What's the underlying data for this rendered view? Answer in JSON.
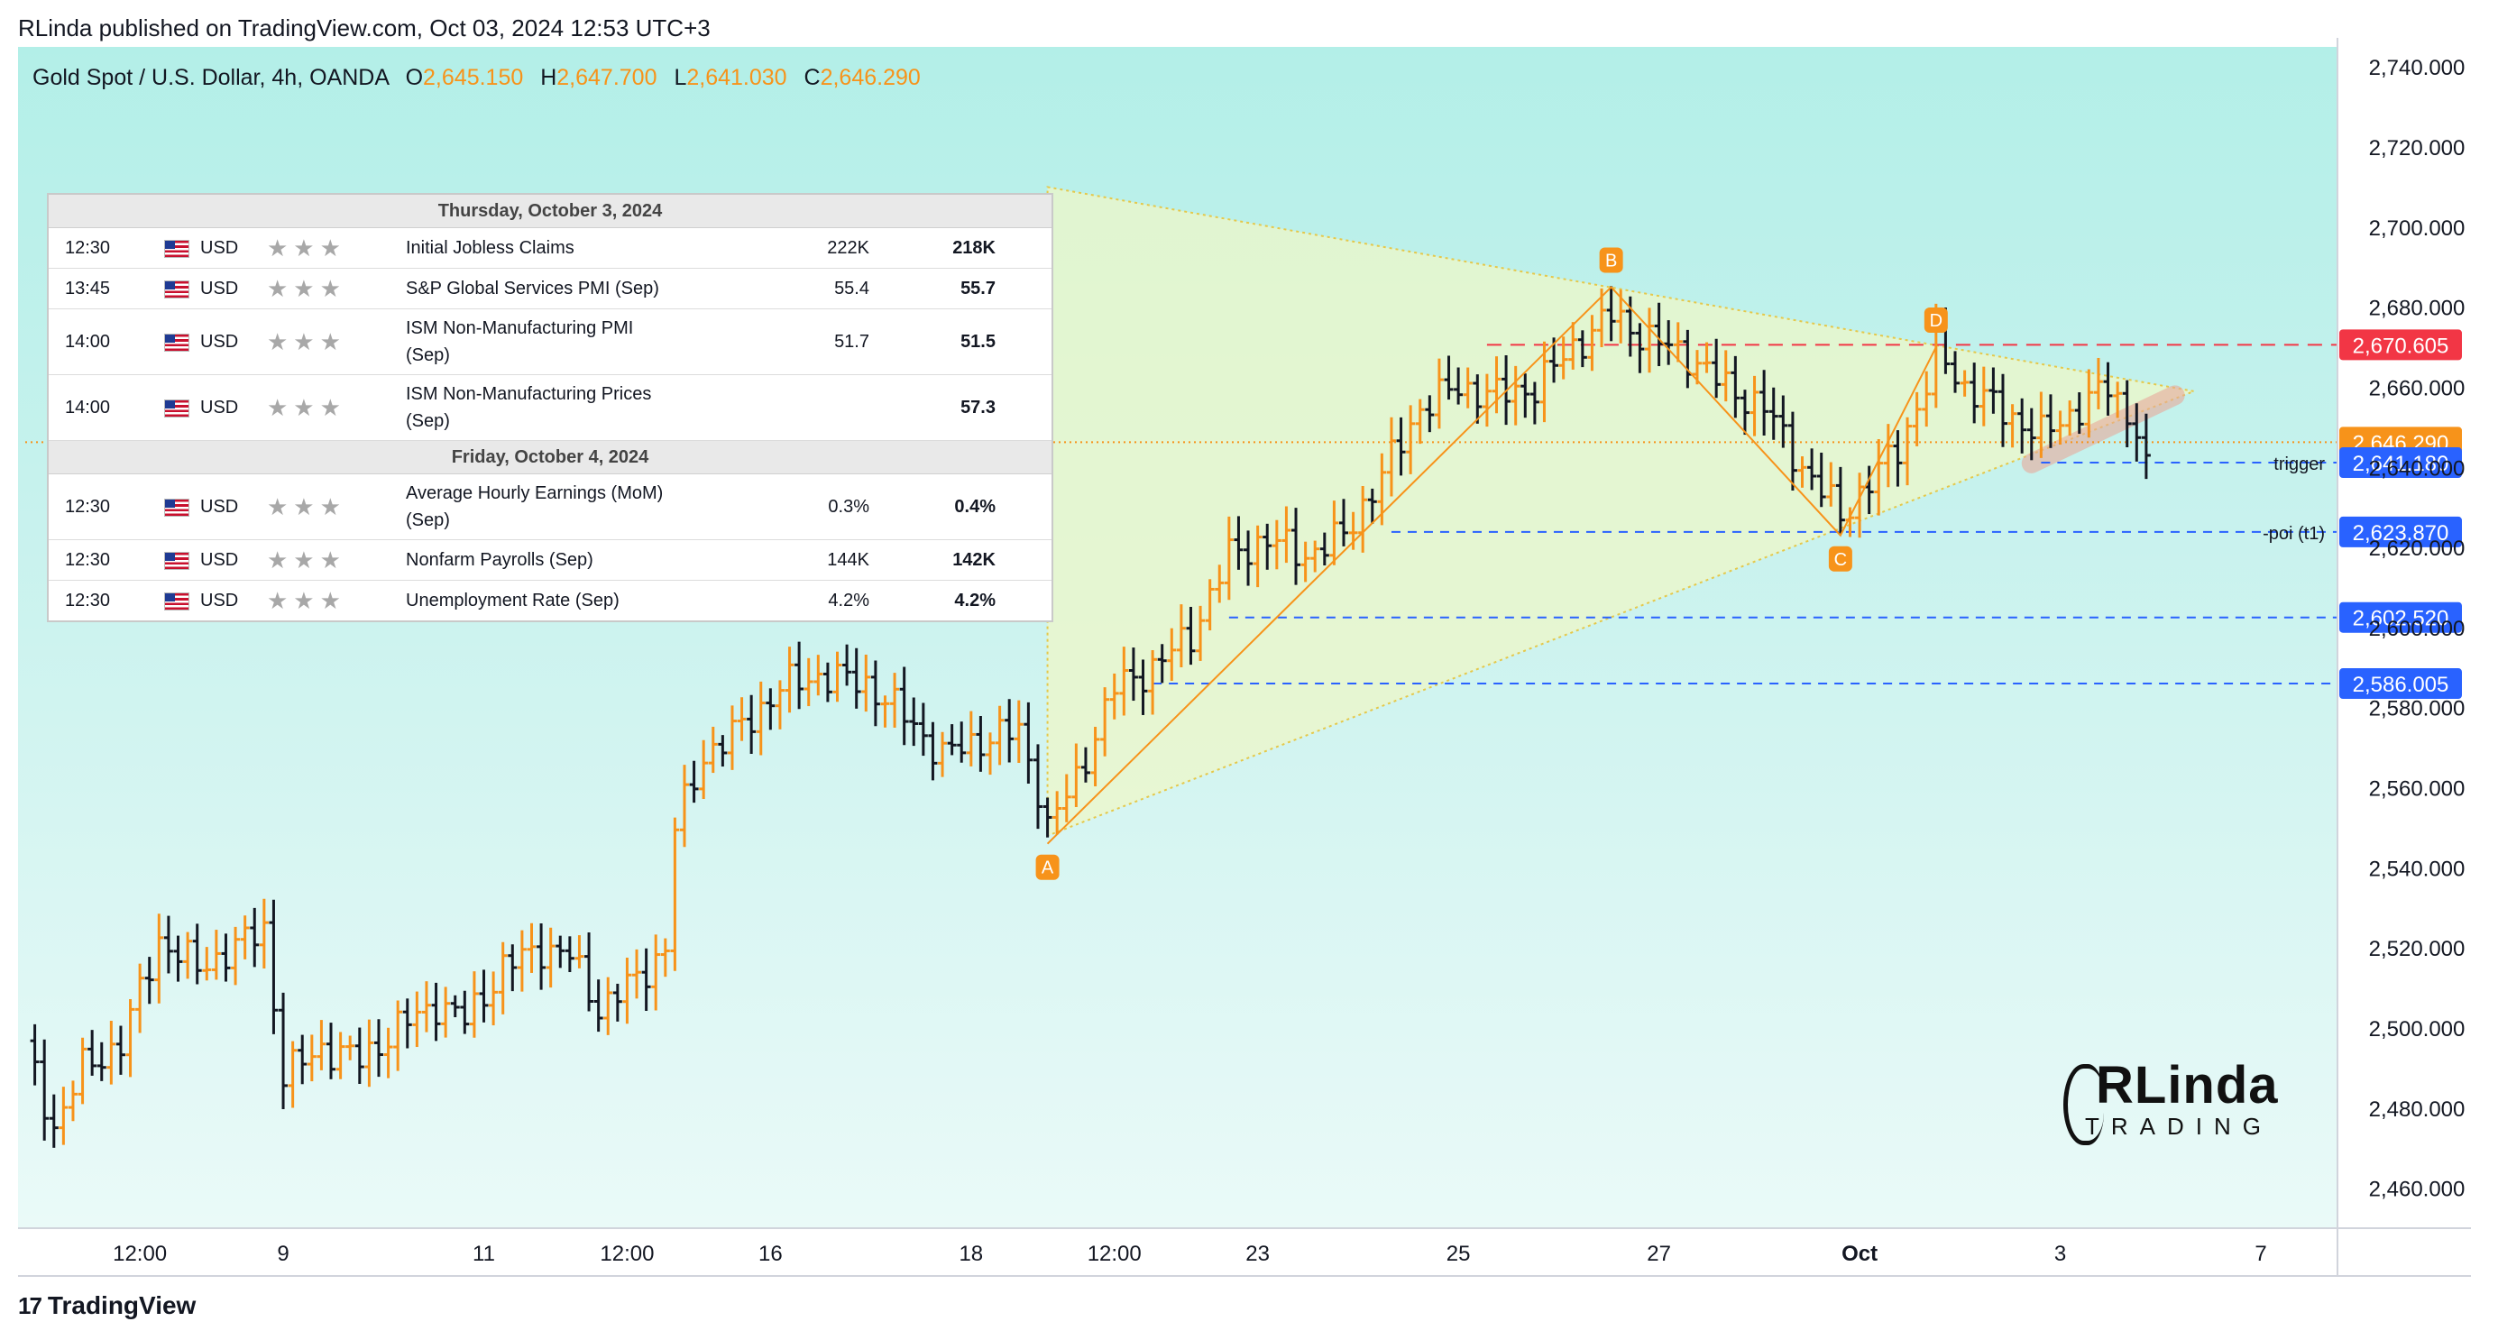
{
  "header": {
    "published": "RLinda published on TradingView.com, Oct 03, 2024 12:53 UTC+3"
  },
  "legend": {
    "symbol": "Gold Spot / U.S. Dollar, 4h, OANDA",
    "o_label": "O",
    "o": "2,645.150",
    "h_label": "H",
    "h": "2,647.700",
    "l_label": "L",
    "l": "2,641.030",
    "c_label": "C",
    "c": "2,646.290"
  },
  "calendar": {
    "days": [
      {
        "title": "Thursday, October 3, 2024",
        "events": [
          {
            "time": "12:30",
            "currency": "USD",
            "name": "Initial Jobless Claims",
            "name2": "",
            "previous": "222K",
            "actual": "218K"
          },
          {
            "time": "13:45",
            "currency": "USD",
            "name": "S&P Global Services PMI (Sep)",
            "name2": "",
            "previous": "55.4",
            "actual": "55.7"
          },
          {
            "time": "14:00",
            "currency": "USD",
            "name": "ISM Non-Manufacturing PMI",
            "name2": "(Sep)",
            "previous": "51.7",
            "actual": "51.5"
          },
          {
            "time": "14:00",
            "currency": "USD",
            "name": "ISM Non-Manufacturing Prices",
            "name2": "(Sep)",
            "previous": "",
            "actual": "57.3"
          }
        ]
      },
      {
        "title": "Friday, October 4, 2024",
        "events": [
          {
            "time": "12:30",
            "currency": "USD",
            "name": "Average Hourly Earnings (MoM)",
            "name2": "(Sep)",
            "previous": "0.3%",
            "actual": "0.4%"
          },
          {
            "time": "12:30",
            "currency": "USD",
            "name": "Nonfarm Payrolls (Sep)",
            "name2": "",
            "previous": "144K",
            "actual": "142K"
          },
          {
            "time": "12:30",
            "currency": "USD",
            "name": "Unemployment Rate (Sep)",
            "name2": "",
            "previous": "4.2%",
            "actual": "4.2%"
          }
        ]
      }
    ],
    "stars_glyph": "★★★",
    "flag_icon": "us-flag-icon"
  },
  "chart_data": {
    "type": "ohlc",
    "ylim": [
      2450,
      2745
    ],
    "y_ticks": [
      2460,
      2480,
      2500,
      2520,
      2540,
      2560,
      2580,
      2600,
      2620,
      2640,
      2660,
      2680,
      2700,
      2720,
      2740
    ],
    "y_tick_labels": [
      "2,460.000",
      "2,480.000",
      "2,500.000",
      "2,520.000",
      "2,540.000",
      "2,560.000",
      "2,580.000",
      "2,600.000",
      "2,620.000",
      "2,640.000",
      "2,660.000",
      "2,680.000",
      "2,700.000",
      "2,720.000",
      "2,740.000"
    ],
    "x_ticks": [
      {
        "label": "12:00",
        "index": 12
      },
      {
        "label": "9",
        "index": 27
      },
      {
        "label": "11",
        "index": 48
      },
      {
        "label": "12:00",
        "index": 63
      },
      {
        "label": "16",
        "index": 78
      },
      {
        "label": "18",
        "index": 99
      },
      {
        "label": "12:00",
        "index": 114
      },
      {
        "label": "23",
        "index": 129
      },
      {
        "label": "25",
        "index": 150
      },
      {
        "label": "27",
        "index": 171
      },
      {
        "label": "Oct",
        "index": 192,
        "bold": true
      },
      {
        "label": "3",
        "index": 213
      },
      {
        "label": "7",
        "index": 234
      }
    ],
    "x_count": 240,
    "key_points": [
      {
        "label": "A",
        "index": 107,
        "price": 2546
      },
      {
        "label": "B",
        "index": 166,
        "price": 2685
      },
      {
        "label": "C",
        "index": 190,
        "price": 2623
      },
      {
        "label": "D",
        "index": 200,
        "price": 2670
      }
    ],
    "triangle": {
      "apex_top_index": 107,
      "apex_top_price": 2710,
      "tip_index": 227,
      "tip_price": 2659,
      "bottom_index": 107,
      "bottom_price": 2548
    },
    "levels": [
      {
        "price": 2670.605,
        "label": "2,670.605",
        "color": "#f23645",
        "style": "dashed",
        "from_index": 153
      },
      {
        "price": 2646.29,
        "label": "2,646.290",
        "color": "#f7931a",
        "style": "dotted",
        "from_index": 0
      },
      {
        "price": 2641.18,
        "label": "2,641.180",
        "color": "#2962ff",
        "style": "dashed",
        "from_index": 211,
        "note": "trigger"
      },
      {
        "price": 2623.87,
        "label": "2,623.870",
        "color": "#2962ff",
        "style": "dashed",
        "from_index": 143,
        "note": "-poi (t1)"
      },
      {
        "price": 2602.52,
        "label": "2,602.520",
        "color": "#2962ff",
        "style": "dashed",
        "from_index": 126
      },
      {
        "price": 2586.005,
        "label": "2,586.005",
        "color": "#2962ff",
        "style": "dashed",
        "from_index": 118
      }
    ],
    "bull_color": "#f7931a",
    "bear_color": "#131722",
    "waypoints": [
      [
        0,
        2495
      ],
      [
        3,
        2475
      ],
      [
        6,
        2490
      ],
      [
        10,
        2496
      ],
      [
        14,
        2522
      ],
      [
        18,
        2515
      ],
      [
        22,
        2520
      ],
      [
        25,
        2525
      ],
      [
        27,
        2488
      ],
      [
        31,
        2495
      ],
      [
        35,
        2492
      ],
      [
        39,
        2500
      ],
      [
        43,
        2506
      ],
      [
        46,
        2502
      ],
      [
        50,
        2515
      ],
      [
        54,
        2520
      ],
      [
        57,
        2518
      ],
      [
        60,
        2505
      ],
      [
        64,
        2512
      ],
      [
        67,
        2520
      ],
      [
        68,
        2550
      ],
      [
        71,
        2568
      ],
      [
        75,
        2575
      ],
      [
        79,
        2585
      ],
      [
        83,
        2588
      ],
      [
        88,
        2586
      ],
      [
        92,
        2578
      ],
      [
        96,
        2568
      ],
      [
        100,
        2572
      ],
      [
        104,
        2574
      ],
      [
        106,
        2560
      ],
      [
        107,
        2550
      ],
      [
        110,
        2562
      ],
      [
        114,
        2585
      ],
      [
        118,
        2590
      ],
      [
        122,
        2598
      ],
      [
        126,
        2618
      ],
      [
        130,
        2622
      ],
      [
        134,
        2618
      ],
      [
        138,
        2623
      ],
      [
        142,
        2638
      ],
      [
        146,
        2655
      ],
      [
        150,
        2660
      ],
      [
        154,
        2658
      ],
      [
        158,
        2660
      ],
      [
        162,
        2670
      ],
      [
        166,
        2678
      ],
      [
        170,
        2672
      ],
      [
        174,
        2668
      ],
      [
        178,
        2660
      ],
      [
        182,
        2655
      ],
      [
        186,
        2640
      ],
      [
        190,
        2628
      ],
      [
        193,
        2636
      ],
      [
        196,
        2645
      ],
      [
        199,
        2660
      ],
      [
        200,
        2670
      ],
      [
        203,
        2660
      ],
      [
        207,
        2654
      ],
      [
        211,
        2648
      ],
      [
        215,
        2655
      ],
      [
        218,
        2660
      ],
      [
        221,
        2650
      ],
      [
        222,
        2643
      ]
    ],
    "price_marker": {
      "price": 2646.29
    }
  },
  "brand": {
    "line1": "RLinda",
    "line2": "TRADING"
  },
  "footer": {
    "logo_text": "TradingView",
    "logo_mark": "17"
  }
}
